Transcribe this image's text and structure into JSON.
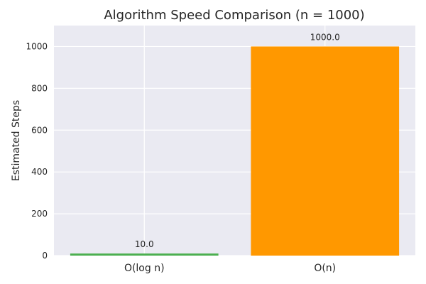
{
  "chart_data": {
    "type": "bar",
    "title": "Algorithm Speed Comparison (n = 1000)",
    "xlabel": "",
    "ylabel": "Estimated Steps",
    "categories": [
      "O(log n)",
      "O(n)"
    ],
    "values": [
      10.0,
      1000.0
    ],
    "data_labels": [
      "10.0",
      "1000.0"
    ],
    "bar_colors": [
      "#4caf50",
      "#ff9800"
    ],
    "ylim": [
      0,
      1100
    ],
    "yticks": [
      0,
      200,
      400,
      600,
      800,
      1000
    ],
    "ytick_labels": [
      "0",
      "200",
      "400",
      "600",
      "800",
      "1000"
    ],
    "grid": true,
    "legend": "none",
    "plot_background": "#eaeaf2"
  }
}
